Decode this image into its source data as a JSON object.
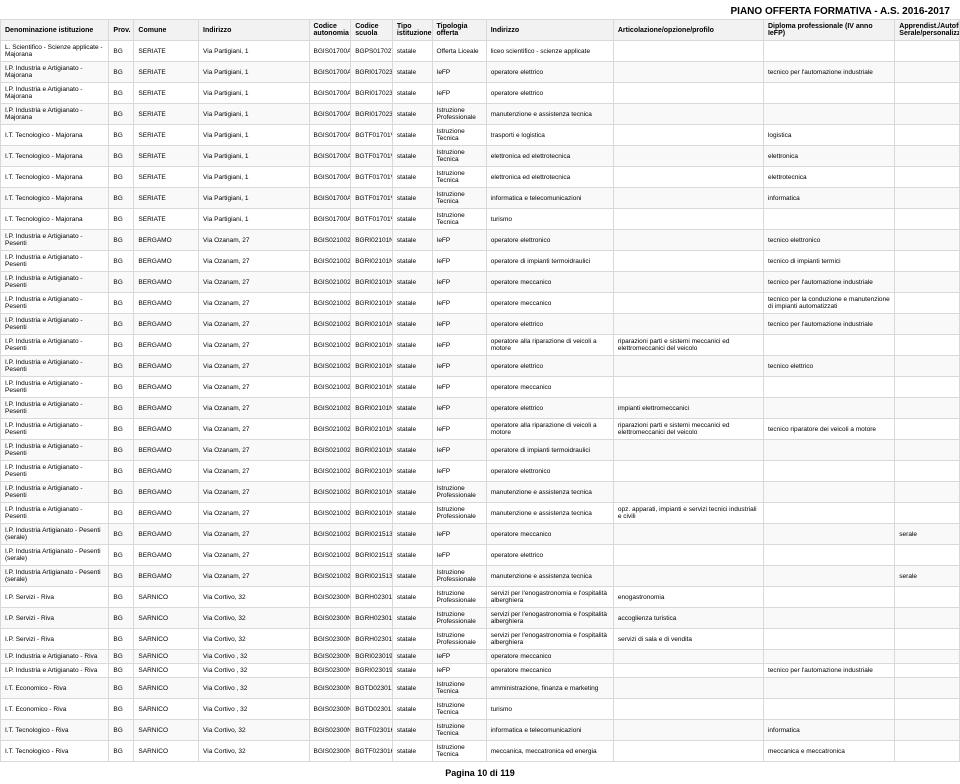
{
  "header_title": "PIANO OFFERTA FORMATIVA - A.S. 2016-2017",
  "columns": [
    "Denominazione istituzione",
    "Prov.",
    "Comune",
    "Indirizzo",
    "Codice autonomia",
    "Codice scuola",
    "Tipo istituzione",
    "Tipologia offerta",
    "Indirizzo",
    "Articolazione/opzione/profilo",
    "Diploma professionale (IV anno IeFP)",
    "Apprendist./Autofinanz. Serale/personalizzato"
  ],
  "rows": [
    [
      "L. Scientifico - Scienze applicate - Majorana",
      "BG",
      "SERIATE",
      "Via Partigiani, 1",
      "BGIS01700A",
      "BGPS01702T",
      "statale",
      "Offerta Liceale",
      "liceo scientifico - scienze applicate",
      "",
      "",
      ""
    ],
    [
      "I.P. Industria e Artigianato - Majorana",
      "BG",
      "SERIATE",
      "Via Partigiani, 1",
      "BGIS01700A",
      "BGRI017023",
      "statale",
      "IeFP",
      "operatore elettrico",
      "",
      "tecnico per l'automazione industriale",
      ""
    ],
    [
      "I.P. Industria e Artigianato - Majorana",
      "BG",
      "SERIATE",
      "Via Partigiani, 1",
      "BGIS01700A",
      "BGRI017023",
      "statale",
      "IeFP",
      "operatore elettrico",
      "",
      "",
      ""
    ],
    [
      "I.P. Industria e Artigianato - Majorana",
      "BG",
      "SERIATE",
      "Via Partigiani, 1",
      "BGIS01700A",
      "BGRI017023",
      "statale",
      "Istruzione Professionale",
      "manutenzione e assistenza tecnica",
      "",
      "",
      ""
    ],
    [
      "I.T. Tecnologico - Majorana",
      "BG",
      "SERIATE",
      "Via Partigiani, 1",
      "BGIS01700A",
      "BGTF01701V",
      "statale",
      "Istruzione Tecnica",
      "trasporti e logistica",
      "",
      "logistica",
      ""
    ],
    [
      "I.T. Tecnologico - Majorana",
      "BG",
      "SERIATE",
      "Via Partigiani, 1",
      "BGIS01700A",
      "BGTF01701V",
      "statale",
      "Istruzione Tecnica",
      "elettronica ed elettrotecnica",
      "",
      "elettronica",
      ""
    ],
    [
      "I.T. Tecnologico - Majorana",
      "BG",
      "SERIATE",
      "Via Partigiani, 1",
      "BGIS01700A",
      "BGTF01701V",
      "statale",
      "Istruzione Tecnica",
      "elettronica ed elettrotecnica",
      "",
      "elettrotecnica",
      ""
    ],
    [
      "I.T. Tecnologico - Majorana",
      "BG",
      "SERIATE",
      "Via Partigiani, 1",
      "BGIS01700A",
      "BGTF01701V",
      "statale",
      "Istruzione Tecnica",
      "informatica e telecomunicazioni",
      "",
      "informatica",
      ""
    ],
    [
      "I.T. Tecnologico - Majorana",
      "BG",
      "SERIATE",
      "Via Partigiani, 1",
      "BGIS01700A",
      "BGTF01701V",
      "statale",
      "Istruzione Tecnica",
      "turismo",
      "",
      "",
      ""
    ],
    [
      "I.P. Industria e Artigianato - Pesenti",
      "BG",
      "BERGAMO",
      "Via Ozanam, 27",
      "BGIS021002",
      "BGRI02101N",
      "statale",
      "IeFP",
      "operatore elettronico",
      "",
      "tecnico elettronico",
      ""
    ],
    [
      "I.P. Industria e Artigianato - Pesenti",
      "BG",
      "BERGAMO",
      "Via Ozanam, 27",
      "BGIS021002",
      "BGRI02101N",
      "statale",
      "IeFP",
      "operatore di impianti termoidraulici",
      "",
      "tecnico di impianti termici",
      ""
    ],
    [
      "I.P. Industria e Artigianato - Pesenti",
      "BG",
      "BERGAMO",
      "Via Ozanam, 27",
      "BGIS021002",
      "BGRI02101N",
      "statale",
      "IeFP",
      "operatore meccanico",
      "",
      "tecnico per l'automazione industriale",
      ""
    ],
    [
      "I.P. Industria e Artigianato - Pesenti",
      "BG",
      "BERGAMO",
      "Via Ozanam, 27",
      "BGIS021002",
      "BGRI02101N",
      "statale",
      "IeFP",
      "operatore meccanico",
      "",
      "tecnico per la conduzione e manutenzione di impianti automatizzati",
      ""
    ],
    [
      "I.P. Industria e Artigianato - Pesenti",
      "BG",
      "BERGAMO",
      "Via Ozanam, 27",
      "BGIS021002",
      "BGRI02101N",
      "statale",
      "IeFP",
      "operatore elettrico",
      "",
      "tecnico per l'automazione industriale",
      ""
    ],
    [
      "I.P. Industria e Artigianato - Pesenti",
      "BG",
      "BERGAMO",
      "Via Ozanam, 27",
      "BGIS021002",
      "BGRI02101N",
      "statale",
      "IeFP",
      "operatore alla riparazione di veicoli a motore",
      "riparazioni parti e sistemi meccanici ed elettromeccanici del veicolo",
      "",
      ""
    ],
    [
      "I.P. Industria e Artigianato - Pesenti",
      "BG",
      "BERGAMO",
      "Via Ozanam, 27",
      "BGIS021002",
      "BGRI02101N",
      "statale",
      "IeFP",
      "operatore elettrico",
      "",
      "tecnico elettrico",
      ""
    ],
    [
      "I.P. Industria e Artigianato - Pesenti",
      "BG",
      "BERGAMO",
      "Via Ozanam, 27",
      "BGIS021002",
      "BGRI02101N",
      "statale",
      "IeFP",
      "operatore meccanico",
      "",
      "",
      ""
    ],
    [
      "I.P. Industria e Artigianato - Pesenti",
      "BG",
      "BERGAMO",
      "Via Ozanam, 27",
      "BGIS021002",
      "BGRI02101N",
      "statale",
      "IeFP",
      "operatore elettrico",
      "impianti elettromeccanici",
      "",
      ""
    ],
    [
      "I.P. Industria e Artigianato - Pesenti",
      "BG",
      "BERGAMO",
      "Via Ozanam, 27",
      "BGIS021002",
      "BGRI02101N",
      "statale",
      "IeFP",
      "operatore alla riparazione di veicoli a motore",
      "riparazioni parti e sistemi meccanici ed elettromeccanici del veicolo",
      "tecnico riparatore dei veicoli a motore",
      ""
    ],
    [
      "I.P. Industria e Artigianato - Pesenti",
      "BG",
      "BERGAMO",
      "Via Ozanam, 27",
      "BGIS021002",
      "BGRI02101N",
      "statale",
      "IeFP",
      "operatore di impianti termoidraulici",
      "",
      "",
      ""
    ],
    [
      "I.P. Industria e Artigianato - Pesenti",
      "BG",
      "BERGAMO",
      "Via Ozanam, 27",
      "BGIS021002",
      "BGRI02101N",
      "statale",
      "IeFP",
      "operatore elettronico",
      "",
      "",
      ""
    ],
    [
      "I.P. Industria e Artigianato - Pesenti",
      "BG",
      "BERGAMO",
      "Via Ozanam, 27",
      "BGIS021002",
      "BGRI02101N",
      "statale",
      "Istruzione Professionale",
      "manutenzione e assistenza tecnica",
      "",
      "",
      ""
    ],
    [
      "I.P. Industria e Artigianato - Pesenti",
      "BG",
      "BERGAMO",
      "Via Ozanam, 27",
      "BGIS021002",
      "BGRI02101N",
      "statale",
      "Istruzione Professionale",
      "manutenzione e assistenza tecnica",
      "opz. apparati, impianti e servizi tecnici industriali e civili",
      "",
      ""
    ],
    [
      "I.P. Industria Artigianato - Pesenti (serale)",
      "BG",
      "BERGAMO",
      "Via Ozanam, 27",
      "BGIS021002",
      "BGRI021513",
      "statale",
      "IeFP",
      "operatore meccanico",
      "",
      "",
      "serale"
    ],
    [
      "I.P. Industria Artigianato - Pesenti (serale)",
      "BG",
      "BERGAMO",
      "Via Ozanam, 27",
      "BGIS021002",
      "BGRI021513",
      "statale",
      "IeFP",
      "operatore elettrico",
      "",
      "",
      ""
    ],
    [
      "I.P. Industria Artigianato - Pesenti (serale)",
      "BG",
      "BERGAMO",
      "Via Ozanam, 27",
      "BGIS021002",
      "BGRI021513",
      "statale",
      "Istruzione Professionale",
      "manutenzione e assistenza tecnica",
      "",
      "",
      "serale"
    ],
    [
      "I.P. Servizi - Riva",
      "BG",
      "SARNICO",
      "Via Cortivo, 32",
      "BGIS02300N",
      "BGRH02301T",
      "statale",
      "Istruzione Professionale",
      "servizi per l'enogastronomia e l'ospitalità alberghiera",
      "enogastronomia",
      "",
      ""
    ],
    [
      "I.P. Servizi - Riva",
      "BG",
      "SARNICO",
      "Via Cortivo, 32",
      "BGIS02300N",
      "BGRH02301T",
      "statale",
      "Istruzione Professionale",
      "servizi per l'enogastronomia e l'ospitalità alberghiera",
      "accoglienza turistica",
      "",
      ""
    ],
    [
      "I.P. Servizi - Riva",
      "BG",
      "SARNICO",
      "Via Cortivo, 32",
      "BGIS02300N",
      "BGRH02301T",
      "statale",
      "Istruzione Professionale",
      "servizi per l'enogastronomia e l'ospitalità alberghiera",
      "servizi di sala e di vendita",
      "",
      ""
    ],
    [
      "I.P. Industria e Artigianato - Riva",
      "BG",
      "SARNICO",
      "Via Cortivo , 32",
      "BGIS02300N",
      "BGRI023019",
      "statale",
      "IeFP",
      "operatore meccanico",
      "",
      "",
      ""
    ],
    [
      "I.P. Industria e Artigianato - Riva",
      "BG",
      "SARNICO",
      "Via Cortivo , 32",
      "BGIS02300N",
      "BGRI023019",
      "statale",
      "IeFP",
      "operatore meccanico",
      "",
      "tecnico per l'automazione industriale",
      ""
    ],
    [
      "I.T. Economico - Riva",
      "BG",
      "SARNICO",
      "Via Cortivo , 32",
      "BGIS02300N",
      "BGTD02301X",
      "statale",
      "Istruzione Tecnica",
      "amministrazione, finanza e marketing",
      "",
      "",
      ""
    ],
    [
      "I.T. Economico - Riva",
      "BG",
      "SARNICO",
      "Via Cortivo , 32",
      "BGIS02300N",
      "BGTD02301X",
      "statale",
      "Istruzione Tecnica",
      "turismo",
      "",
      "",
      ""
    ],
    [
      "I.T. Tecnologico - Riva",
      "BG",
      "SARNICO",
      "Via Cortivo, 32",
      "BGIS02300N",
      "BGTF023016",
      "statale",
      "Istruzione Tecnica",
      "informatica e telecomunicazioni",
      "",
      "informatica",
      ""
    ],
    [
      "I.T. Tecnologico - Riva",
      "BG",
      "SARNICO",
      "Via Cortivo, 32",
      "BGIS02300N",
      "BGTF023016",
      "statale",
      "Istruzione Tecnica",
      "meccanica, meccatronica ed energia",
      "",
      "meccanica e meccatronica",
      ""
    ]
  ],
  "group_start_indices": [
    9,
    23,
    26,
    29,
    31,
    33
  ],
  "footer": "Pagina 10 di 119"
}
